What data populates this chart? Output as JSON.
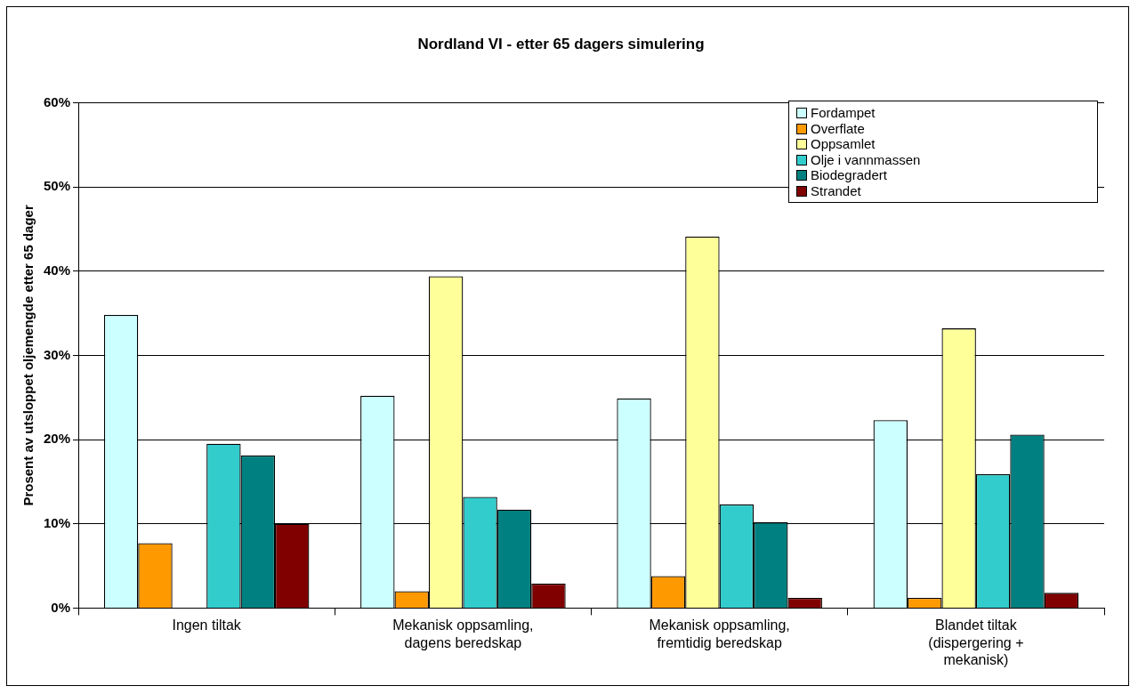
{
  "chart_data": {
    "type": "bar",
    "title": "Nordland VI - etter 65 dagers simulering",
    "ylabel": "Prosent av utsloppet oljemengde etter 65 dager",
    "categories": [
      "Ingen tiltak",
      "Mekanisk oppsamling, dagens beredskap",
      "Mekanisk oppsamling, fremtidig beredskap",
      "Blandet tiltak (dispergering + mekanisk)"
    ],
    "series": [
      {
        "name": "Fordampet",
        "color": "#ccffff",
        "values": [
          34.8,
          25.2,
          24.9,
          22.3
        ]
      },
      {
        "name": "Overflate",
        "color": "#ff9900",
        "values": [
          7.7,
          2.0,
          3.8,
          1.2
        ]
      },
      {
        "name": "Oppsamlet",
        "color": "#ffff99",
        "values": [
          0,
          39.4,
          44.1,
          33.2
        ]
      },
      {
        "name": "Olje i vannmassen",
        "color": "#33cccc",
        "values": [
          19.5,
          13.2,
          12.3,
          15.9
        ]
      },
      {
        "name": "Biodegradert",
        "color": "#008080",
        "values": [
          18.1,
          11.7,
          10.2,
          20.6
        ]
      },
      {
        "name": "Strandet",
        "color": "#800000",
        "values": [
          10.0,
          2.9,
          1.2,
          1.8
        ]
      }
    ],
    "ylim": [
      0,
      60
    ],
    "yticks": [
      {
        "value": 0,
        "label": "0%"
      },
      {
        "value": 10,
        "label": "10%"
      },
      {
        "value": 20,
        "label": "20%"
      },
      {
        "value": 30,
        "label": "30%"
      },
      {
        "value": 40,
        "label": "40%"
      },
      {
        "value": 50,
        "label": "50%"
      },
      {
        "value": 60,
        "label": "60%"
      }
    ],
    "grid": "y",
    "legend": "top right"
  }
}
